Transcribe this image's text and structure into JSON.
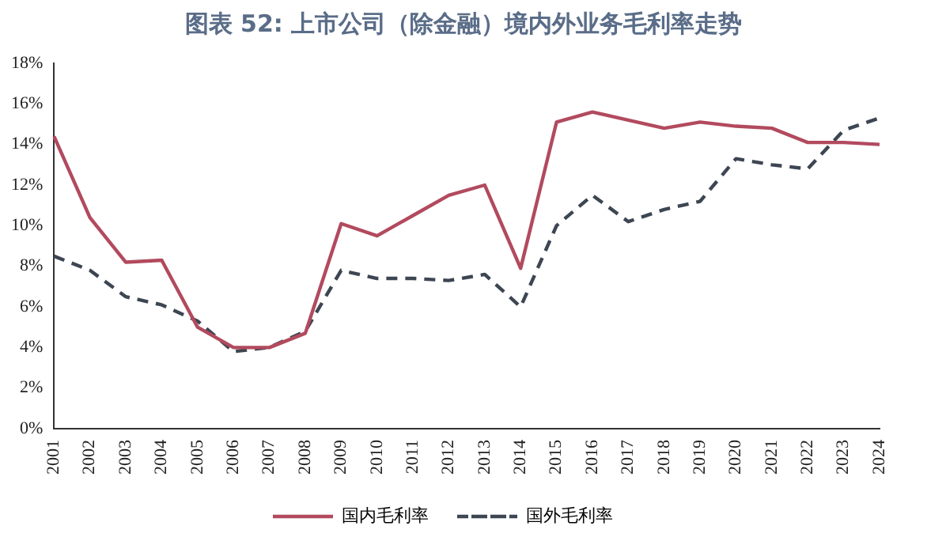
{
  "chart_data": {
    "type": "line",
    "title": "图表 52: 上市公司（除金融）境内外业务毛利率走势",
    "categories": [
      "2001",
      "2002",
      "2003",
      "2004",
      "2005",
      "2006",
      "2007",
      "2008",
      "2009",
      "2010",
      "2011",
      "2012",
      "2013",
      "2014",
      "2015",
      "2016",
      "2017",
      "2018",
      "2019",
      "2020",
      "2021",
      "2022",
      "2023",
      "2024"
    ],
    "series": [
      {
        "name": "国内毛利率",
        "color": "#b24a5e",
        "line_style": "solid",
        "values": [
          14.4,
          10.4,
          8.2,
          8.3,
          5.0,
          4.0,
          4.0,
          4.7,
          10.1,
          9.5,
          10.5,
          11.5,
          12.0,
          7.9,
          15.1,
          15.6,
          15.2,
          14.8,
          15.1,
          14.9,
          14.8,
          14.1,
          14.1,
          14.0
        ]
      },
      {
        "name": "国外毛利率",
        "color": "#3d4652",
        "line_style": "dashed",
        "values": [
          8.5,
          7.8,
          6.5,
          6.1,
          5.3,
          3.8,
          4.0,
          4.8,
          7.8,
          7.4,
          7.4,
          7.3,
          7.6,
          6.0,
          10.0,
          11.5,
          10.2,
          10.8,
          11.2,
          13.3,
          13.0,
          12.8,
          14.7,
          15.3
        ]
      }
    ],
    "ylim": [
      0,
      18
    ],
    "yticks": [
      {
        "value": 0,
        "label": "0%"
      },
      {
        "value": 2,
        "label": "2%"
      },
      {
        "value": 4,
        "label": "4%"
      },
      {
        "value": 6,
        "label": "6%"
      },
      {
        "value": 8,
        "label": "8%"
      },
      {
        "value": 10,
        "label": "10%"
      },
      {
        "value": 12,
        "label": "12%"
      },
      {
        "value": 14,
        "label": "14%"
      },
      {
        "value": 16,
        "label": "16%"
      },
      {
        "value": 18,
        "label": "18%"
      }
    ],
    "grid": false,
    "legend": "bottom",
    "marker": "none"
  }
}
